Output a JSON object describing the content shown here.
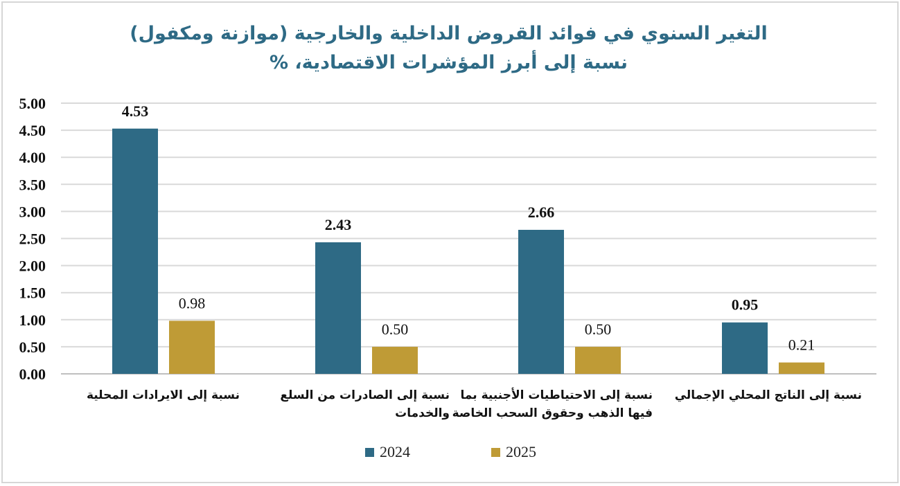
{
  "chart_data": {
    "type": "bar",
    "title_line1": "التغير السنوي في فوائد القروض الداخلية والخارجية (موازنة ومكفول)",
    "title_line2": "نسبة إلى أبرز المؤشرات الاقتصادية، %",
    "categories": [
      [
        "نسبة إلى الايرادات المحلية"
      ],
      [
        "نسبة إلى الصادرات من السلع",
        "والخدمات"
      ],
      [
        "نسبة إلى الاحتياطيات الأجنبية بما",
        "فيها الذهب وحقوق السحب الخاصة"
      ],
      [
        "نسبة إلى  الناتج المحلي الإجمالي"
      ]
    ],
    "series": [
      {
        "name": "2024",
        "color": "#2e6a85",
        "values": [
          4.53,
          2.43,
          2.66,
          0.95
        ],
        "labels": [
          "4.53",
          "2.43",
          "2.66",
          "0.95"
        ],
        "label_bold": true
      },
      {
        "name": "2025",
        "color": "#bf9b36",
        "values": [
          0.98,
          0.5,
          0.5,
          0.21
        ],
        "labels": [
          "0.98",
          "0.50",
          "0.50",
          "0.21"
        ],
        "label_bold": false
      }
    ],
    "ylim": [
      0,
      5
    ],
    "yticks": [
      "0.00",
      "0.50",
      "1.00",
      "1.50",
      "2.00",
      "2.50",
      "3.00",
      "3.50",
      "4.00",
      "4.50",
      "5.00"
    ],
    "grid": true,
    "legend_position": "bottom"
  }
}
